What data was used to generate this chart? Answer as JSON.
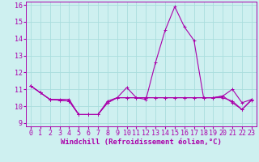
{
  "xlabel": "Windchill (Refroidissement éolien,°C)",
  "ylabel": "",
  "background_color": "#cef0f0",
  "grid_color": "#aadddd",
  "line_color": "#aa00aa",
  "ylim": [
    8.8,
    16.2
  ],
  "xlim": [
    -0.5,
    23.5
  ],
  "yticks": [
    9,
    10,
    11,
    12,
    13,
    14,
    15,
    16
  ],
  "xticks": [
    0,
    1,
    2,
    3,
    4,
    5,
    6,
    7,
    8,
    9,
    10,
    11,
    12,
    13,
    14,
    15,
    16,
    17,
    18,
    19,
    20,
    21,
    22,
    23
  ],
  "series": [
    {
      "x": [
        0,
        1,
        2,
        3,
        4,
        5,
        6,
        7,
        8,
        9,
        10,
        11,
        12,
        13,
        14,
        15,
        16,
        17,
        18,
        19,
        20,
        21,
        22,
        23
      ],
      "y": [
        11.2,
        10.8,
        10.4,
        10.4,
        10.4,
        9.5,
        9.5,
        9.5,
        10.3,
        10.5,
        11.1,
        10.5,
        10.4,
        12.6,
        14.5,
        15.9,
        14.7,
        13.9,
        10.5,
        10.5,
        10.6,
        11.0,
        10.2,
        10.4
      ]
    },
    {
      "x": [
        0,
        1,
        2,
        3,
        4,
        5,
        6,
        7,
        8,
        9,
        10,
        11,
        12,
        13,
        14,
        15,
        16,
        17,
        18,
        19,
        20,
        21,
        22,
        23
      ],
      "y": [
        11.2,
        10.8,
        10.4,
        10.35,
        10.3,
        9.5,
        9.5,
        9.5,
        10.2,
        10.5,
        10.5,
        10.5,
        10.5,
        10.5,
        10.5,
        10.5,
        10.5,
        10.5,
        10.5,
        10.5,
        10.5,
        10.3,
        9.8,
        10.4
      ]
    },
    {
      "x": [
        0,
        1,
        2,
        3,
        4,
        5,
        6,
        7,
        8,
        9,
        10,
        11,
        12,
        13,
        14,
        15,
        16,
        17,
        18,
        19,
        20,
        21,
        22,
        23
      ],
      "y": [
        11.2,
        10.8,
        10.4,
        10.35,
        10.3,
        9.5,
        9.5,
        9.5,
        10.2,
        10.5,
        10.5,
        10.5,
        10.5,
        10.5,
        10.5,
        10.5,
        10.5,
        10.5,
        10.5,
        10.5,
        10.6,
        10.2,
        9.8,
        10.35
      ]
    }
  ],
  "marker": "+",
  "markersize": 3,
  "linewidth": 0.8,
  "fontsize_ticks": 6,
  "fontsize_label": 6.5
}
